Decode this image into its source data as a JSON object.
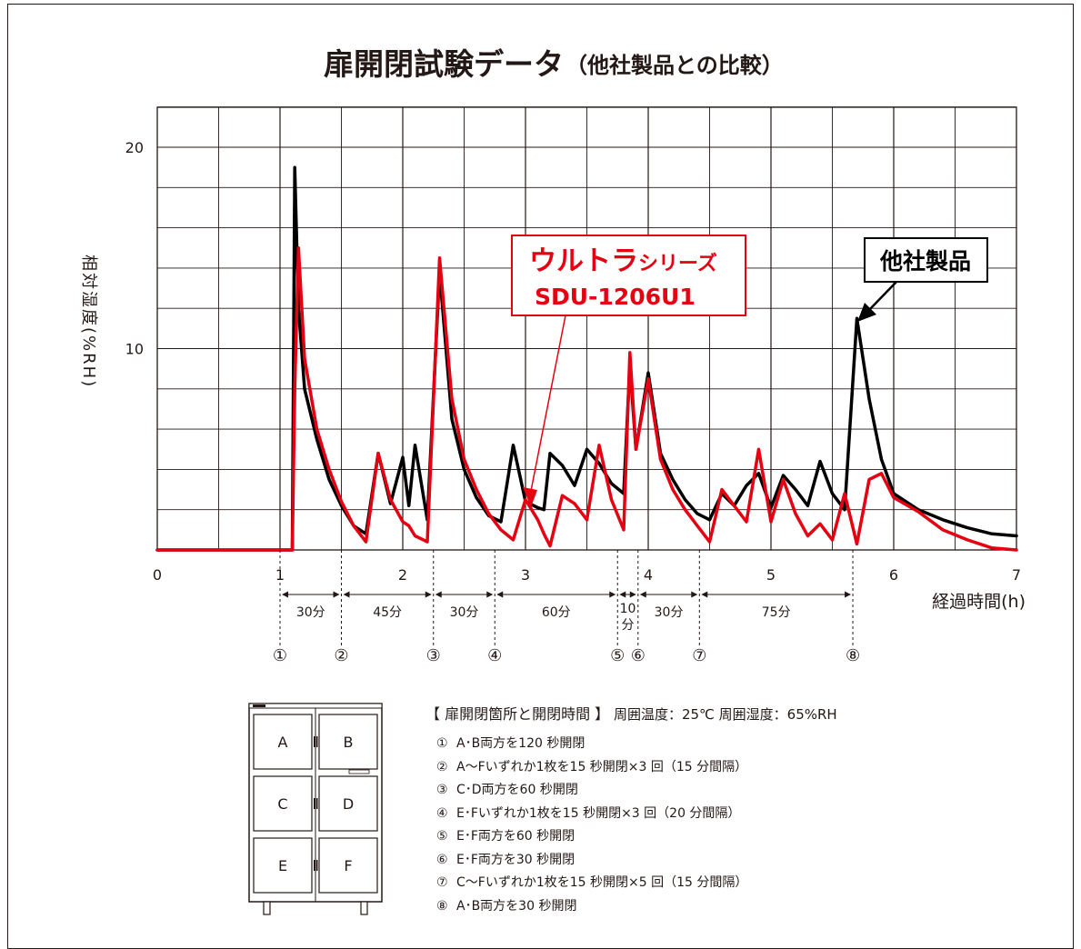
{
  "colors": {
    "ultra": "#e50012",
    "competitor": "#000000",
    "grid": "#231815",
    "text": "#231815"
  },
  "title": {
    "main": "扉開閉試験データ",
    "sub": "（他社製品との比較）"
  },
  "chart_data": {
    "type": "line",
    "ylabel": "相対湿度(%RH)",
    "xlabel": "経過時間(h)",
    "xlim": [
      0,
      7
    ],
    "ylim": [
      0,
      20
    ],
    "x_ticks": [
      "0",
      "1",
      "2",
      "3",
      "4",
      "5",
      "6",
      "7"
    ],
    "y_ticks": [
      "10",
      "20"
    ],
    "grid": true,
    "series": [
      {
        "name": "ウルトラシリーズ SDU-1206U1",
        "color": "#e50012",
        "x": [
          0,
          1.0,
          1.05,
          1.1,
          1.12,
          1.15,
          1.2,
          1.3,
          1.4,
          1.5,
          1.6,
          1.7,
          1.8,
          1.9,
          2.0,
          2.05,
          2.1,
          2.2,
          2.3,
          2.4,
          2.5,
          2.6,
          2.7,
          2.8,
          2.9,
          3.0,
          3.1,
          3.15,
          3.2,
          3.3,
          3.4,
          3.5,
          3.6,
          3.7,
          3.8,
          3.85,
          3.9,
          4.0,
          4.1,
          4.2,
          4.3,
          4.4,
          4.5,
          4.6,
          4.7,
          4.8,
          4.9,
          5.0,
          5.1,
          5.2,
          5.3,
          5.4,
          5.5,
          5.6,
          5.7,
          5.8,
          5.9,
          6.0,
          6.2,
          6.4,
          6.6,
          6.8,
          7.0
        ],
        "y": [
          0,
          0,
          0,
          0,
          8,
          15,
          9.5,
          6,
          4,
          2.4,
          1.2,
          0.4,
          4.8,
          2.5,
          1.4,
          1.2,
          0.7,
          0.4,
          14.5,
          7.5,
          4.5,
          3,
          1.8,
          1,
          0.5,
          2.5,
          1.5,
          0.8,
          0.2,
          2.7,
          2.3,
          1.5,
          5.2,
          2.5,
          1,
          9.8,
          5,
          8.5,
          4.5,
          3,
          2,
          1.2,
          0.4,
          3,
          2.2,
          1.4,
          5,
          1.4,
          3.5,
          1.8,
          0.7,
          1.3,
          0.5,
          2.8,
          0.3,
          3.5,
          3.8,
          2.6,
          1.9,
          1.0,
          0.5,
          0.1,
          0
        ]
      },
      {
        "name": "他社製品",
        "color": "#000000",
        "x": [
          0,
          1.0,
          1.05,
          1.1,
          1.12,
          1.15,
          1.2,
          1.3,
          1.4,
          1.5,
          1.6,
          1.7,
          1.8,
          1.9,
          2.0,
          2.05,
          2.1,
          2.2,
          2.3,
          2.4,
          2.5,
          2.6,
          2.7,
          2.8,
          2.9,
          3.0,
          3.1,
          3.15,
          3.2,
          3.3,
          3.4,
          3.5,
          3.6,
          3.7,
          3.8,
          3.85,
          3.9,
          4.0,
          4.1,
          4.2,
          4.3,
          4.4,
          4.5,
          4.6,
          4.7,
          4.8,
          4.9,
          5.0,
          5.1,
          5.2,
          5.3,
          5.4,
          5.5,
          5.6,
          5.7,
          5.8,
          5.9,
          6.0,
          6.2,
          6.4,
          6.6,
          6.8,
          7.0
        ],
        "y": [
          0,
          0,
          0,
          0,
          19,
          12,
          8,
          5.5,
          3.5,
          2.2,
          1.2,
          0.8,
          4.8,
          2.3,
          4.6,
          2.2,
          5.2,
          1.5,
          13.8,
          6.5,
          4,
          2.6,
          1.7,
          1.4,
          5.2,
          2.4,
          2.1,
          2.0,
          4.8,
          4.2,
          3.2,
          5,
          4.3,
          3.3,
          2.8,
          9.2,
          5,
          8.8,
          4.8,
          3.5,
          2.5,
          1.8,
          1.5,
          2.8,
          2.2,
          3.2,
          3.8,
          2.1,
          3.7,
          3,
          2.2,
          4.4,
          2.8,
          2.0,
          11.5,
          7.5,
          4.5,
          2.8,
          2.0,
          1.5,
          1.1,
          0.8,
          0.7
        ]
      }
    ],
    "annotations": {
      "ultra_label_line1_big": "ウルトラ",
      "ultra_label_line1_small": "シリーズ",
      "ultra_label_line2": "SDU-1206U1",
      "competitor_label": "他社製品"
    },
    "events": [
      {
        "marker": "①",
        "hour": 1.0
      },
      {
        "marker": "②",
        "hour": 1.5
      },
      {
        "marker": "③",
        "hour": 2.25
      },
      {
        "marker": "④",
        "hour": 2.75
      },
      {
        "marker": "⑤",
        "hour": 3.75
      },
      {
        "marker": "⑥",
        "hour": 3.917
      },
      {
        "marker": "⑦",
        "hour": 4.417
      },
      {
        "marker": "⑧",
        "hour": 5.667
      }
    ],
    "intervals": [
      {
        "label": "30分",
        "from": 1.0,
        "to": 1.5
      },
      {
        "label": "45分",
        "from": 1.5,
        "to": 2.25
      },
      {
        "label": "30分",
        "from": 2.25,
        "to": 2.75
      },
      {
        "label": "60分",
        "from": 2.75,
        "to": 3.75
      },
      {
        "label": "10\n分",
        "from": 3.75,
        "to": 3.917
      },
      {
        "label": "30分",
        "from": 3.917,
        "to": 4.417
      },
      {
        "label": "75分",
        "from": 4.417,
        "to": 5.667
      }
    ]
  },
  "cabinet": {
    "doors": [
      "A",
      "B",
      "C",
      "D",
      "E",
      "F"
    ]
  },
  "legend": {
    "heading_title": "【 扉開閉箇所と開閉時間 】",
    "heading_conditions": "周囲温度：25℃  周囲湿度：65%RH",
    "items": [
      {
        "num": "①",
        "text": "A･B両方を120 秒開閉"
      },
      {
        "num": "②",
        "text": "A～Fいずれか1枚を15 秒開閉×3 回（15 分間隔）"
      },
      {
        "num": "③",
        "text": "C･D両方を60 秒開閉"
      },
      {
        "num": "④",
        "text": "E･Fいずれか1枚を15 秒開閉×3 回（20 分間隔）"
      },
      {
        "num": "⑤",
        "text": "E･F両方を60 秒開閉"
      },
      {
        "num": "⑥",
        "text": "E･F両方を30 秒開閉"
      },
      {
        "num": "⑦",
        "text": "C～Fいずれか1枚を15 秒開閉×5 回（15 分間隔）"
      },
      {
        "num": "⑧",
        "text": "A･B両方を30 秒開閉"
      }
    ]
  }
}
